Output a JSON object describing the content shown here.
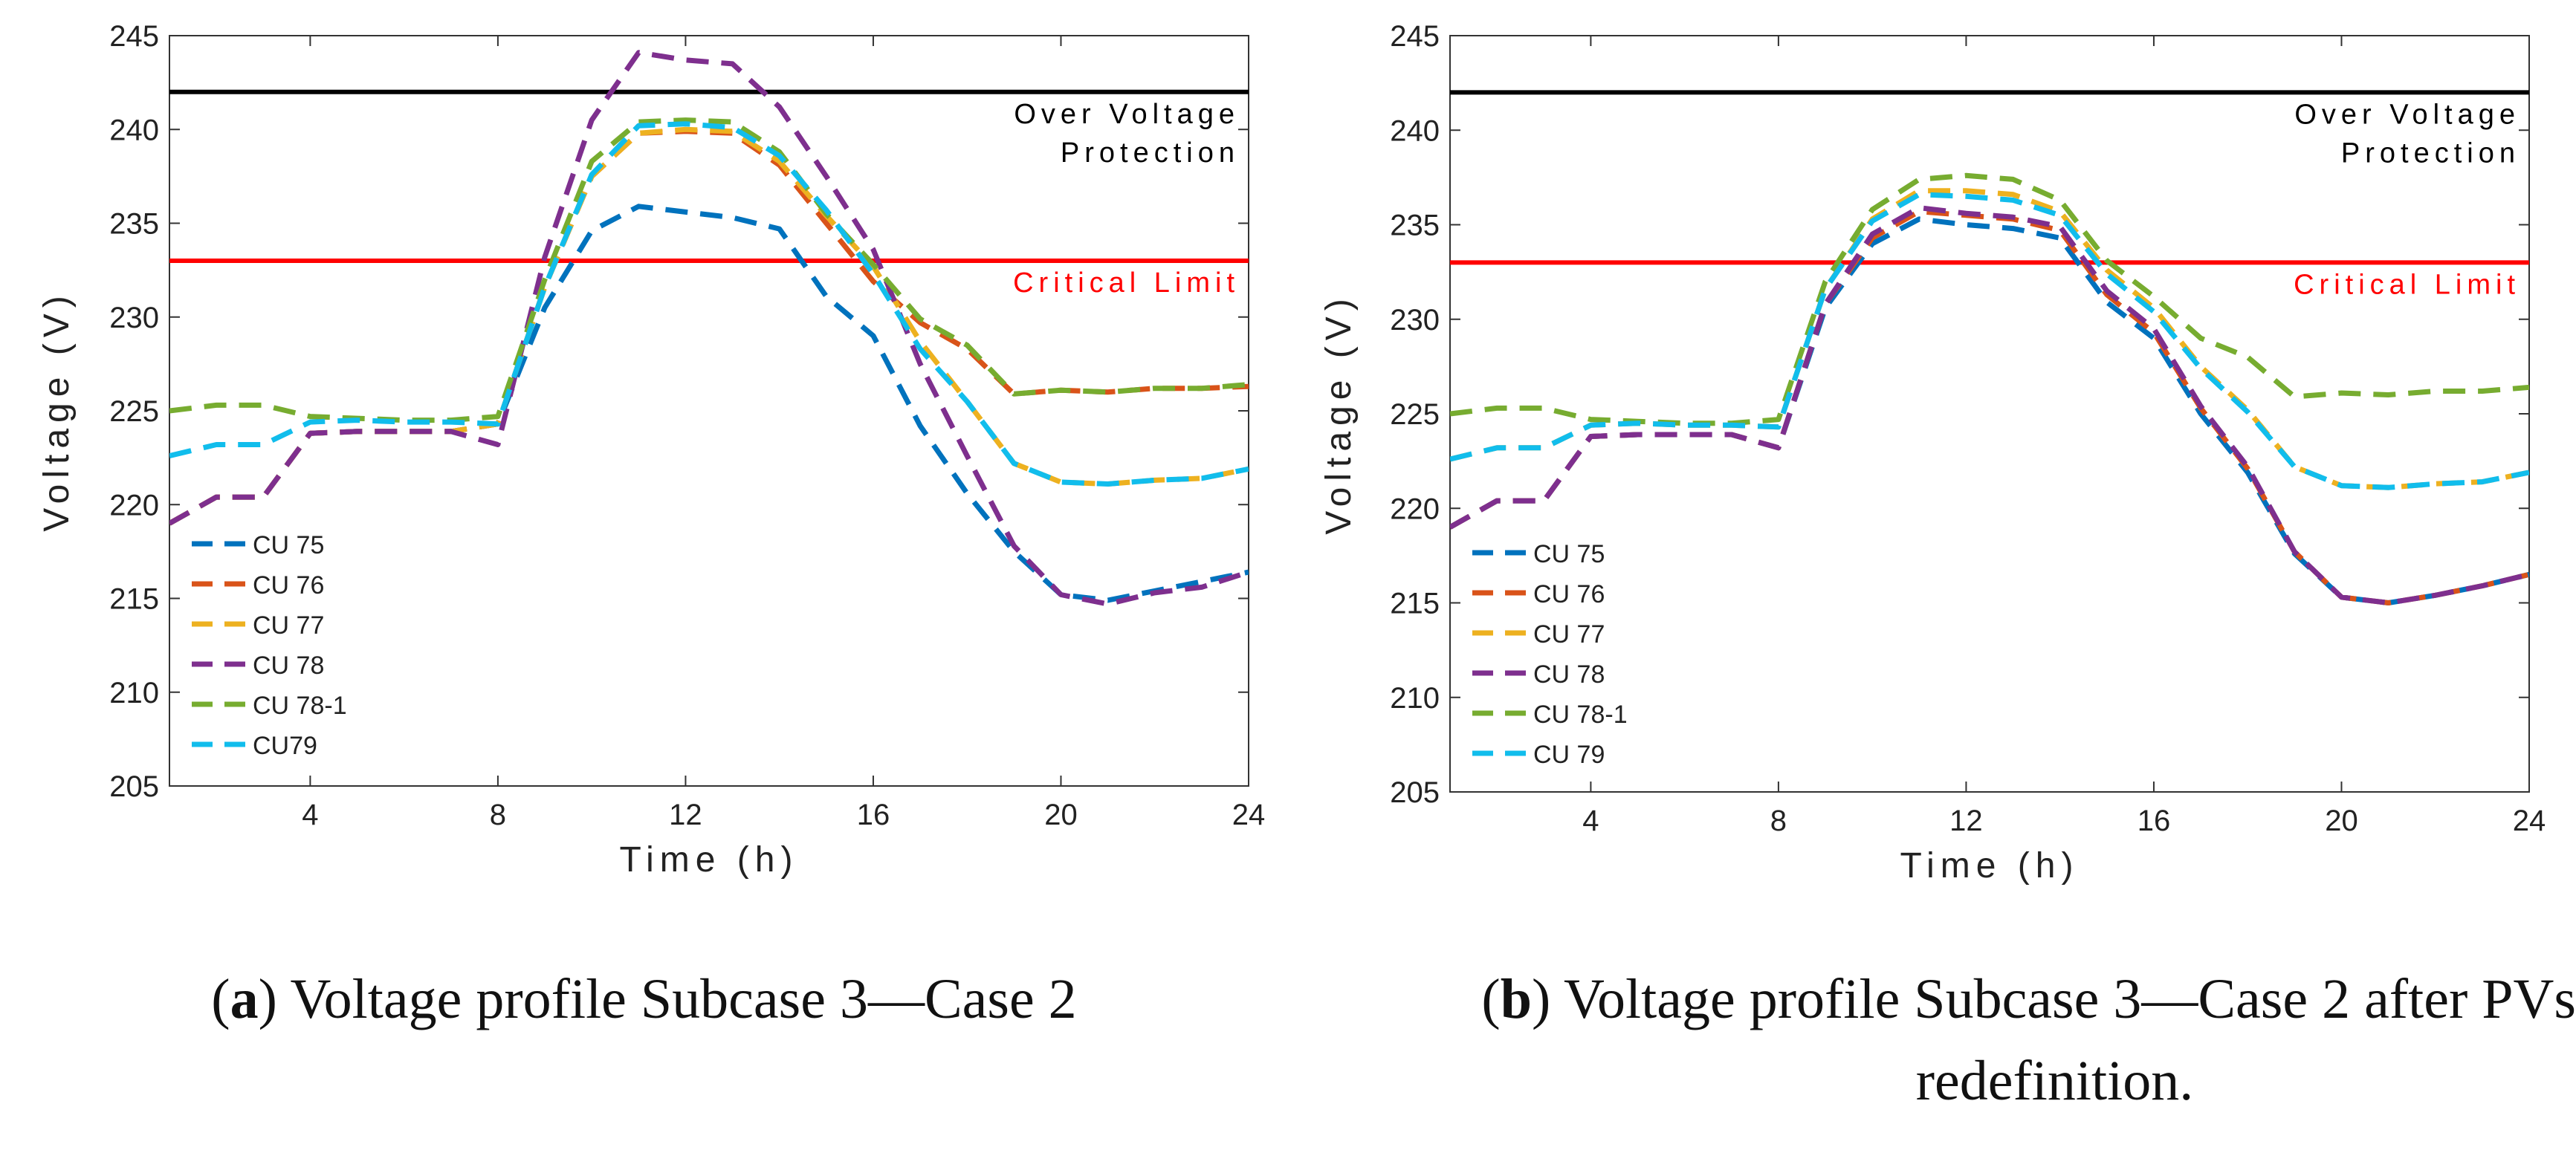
{
  "chart_data": [
    {
      "type": "line",
      "caption": {
        "letter": "a",
        "text": "Voltage profile Subcase 3—Case 2"
      },
      "xlabel": "Time (h)",
      "ylabel": "Voltage (V)",
      "xlim": [
        1,
        24
      ],
      "ylim": [
        205,
        245
      ],
      "xticks": [
        4,
        8,
        12,
        16,
        20,
        24
      ],
      "yticks": [
        205,
        210,
        215,
        220,
        225,
        230,
        235,
        240,
        245
      ],
      "grid": false,
      "legend_position": "bottom-left",
      "hlines": [
        {
          "y": 242,
          "color": "#000000",
          "label_lines": [
            "Over Voltage",
            "Protection"
          ]
        },
        {
          "y": 233,
          "color": "#ff0000",
          "label_lines": [
            "Critical Limit"
          ]
        }
      ],
      "x": [
        1,
        2,
        3,
        4,
        5,
        6,
        7,
        8,
        9,
        10,
        11,
        12,
        13,
        14,
        15,
        16,
        17,
        18,
        19,
        20,
        21,
        22,
        23,
        24
      ],
      "series": [
        {
          "name": "CU 75",
          "color": "#0072bd",
          "values": [
            219.0,
            220.4,
            220.4,
            223.8,
            223.9,
            223.9,
            223.9,
            224.3,
            230.5,
            234.6,
            235.9,
            235.6,
            235.3,
            234.7,
            231.1,
            229.0,
            224.2,
            220.6,
            217.5,
            215.2,
            214.9,
            215.4,
            215.9,
            216.4
          ]
        },
        {
          "name": "CU 76",
          "color": "#d95319",
          "values": [
            219.0,
            220.4,
            220.4,
            223.8,
            223.9,
            223.9,
            223.9,
            224.3,
            231.6,
            237.5,
            239.8,
            239.9,
            239.8,
            238.1,
            235.0,
            231.9,
            229.7,
            228.3,
            225.9,
            226.1,
            226.0,
            226.2,
            226.2,
            226.3
          ]
        },
        {
          "name": "CU 77",
          "color": "#edb120",
          "values": [
            219.0,
            220.4,
            220.4,
            223.8,
            223.9,
            223.9,
            223.9,
            224.3,
            231.6,
            237.5,
            239.8,
            240.0,
            239.9,
            238.3,
            235.4,
            232.7,
            228.7,
            225.5,
            222.2,
            221.2,
            221.1,
            221.3,
            221.4,
            221.9
          ]
        },
        {
          "name": "CU 78",
          "color": "#7e2f8e",
          "values": [
            219.0,
            220.4,
            220.4,
            223.8,
            223.9,
            223.9,
            223.9,
            223.2,
            233.2,
            240.5,
            244.1,
            243.7,
            243.5,
            241.2,
            237.5,
            233.6,
            227.5,
            222.6,
            217.8,
            215.2,
            214.7,
            215.3,
            215.6,
            216.4
          ]
        },
        {
          "name": "CU 78-1",
          "color": "#77ac30",
          "values": [
            225.0,
            225.3,
            225.3,
            224.7,
            224.6,
            224.5,
            224.5,
            224.7,
            232.0,
            238.3,
            240.4,
            240.5,
            240.4,
            238.8,
            235.5,
            232.8,
            229.9,
            228.5,
            225.9,
            226.1,
            226.0,
            226.2,
            226.2,
            226.4
          ]
        },
        {
          "name": "CU79",
          "color": "#11bdec",
          "values": [
            222.6,
            223.2,
            223.2,
            224.4,
            224.5,
            224.4,
            224.4,
            224.3,
            231.6,
            237.6,
            240.2,
            240.3,
            240.1,
            238.6,
            235.7,
            232.3,
            228.3,
            225.5,
            222.2,
            221.2,
            221.1,
            221.3,
            221.4,
            221.9
          ]
        }
      ]
    },
    {
      "type": "line",
      "caption": {
        "letter": "b",
        "text_line1": "Voltage profile Subcase 3—Case 2 after PVs",
        "text_line2": "redefinition."
      },
      "xlabel": "Time (h)",
      "ylabel": "Voltage (V)",
      "xlim": [
        1,
        24
      ],
      "ylim": [
        205,
        245
      ],
      "xticks": [
        4,
        8,
        12,
        16,
        20,
        24
      ],
      "yticks": [
        205,
        210,
        215,
        220,
        225,
        230,
        235,
        240,
        245
      ],
      "grid": false,
      "legend_position": "bottom-left",
      "hlines": [
        {
          "y": 242,
          "color": "#000000",
          "label_lines": [
            "Over Voltage",
            "Protection"
          ]
        },
        {
          "y": 233,
          "color": "#ff0000",
          "label_lines": [
            "Critical Limit"
          ]
        }
      ],
      "x": [
        1,
        2,
        3,
        4,
        5,
        6,
        7,
        8,
        9,
        10,
        11,
        12,
        13,
        14,
        15,
        16,
        17,
        18,
        19,
        20,
        21,
        22,
        23,
        24
      ],
      "series": [
        {
          "name": "CU 75",
          "color": "#0072bd",
          "values": [
            219.0,
            220.4,
            220.4,
            223.8,
            223.9,
            223.9,
            223.9,
            223.2,
            230.6,
            234.0,
            235.3,
            235.0,
            234.8,
            234.3,
            230.9,
            229.0,
            225.0,
            221.9,
            217.6,
            215.3,
            215.0,
            215.4,
            215.9,
            216.5
          ]
        },
        {
          "name": "CU 76",
          "color": "#d95319",
          "values": [
            219.0,
            220.4,
            220.4,
            223.8,
            223.9,
            223.9,
            223.9,
            223.2,
            230.8,
            234.3,
            235.7,
            235.5,
            235.3,
            234.7,
            231.3,
            229.3,
            225.3,
            222.1,
            217.7,
            215.3,
            215.0,
            215.4,
            215.9,
            216.5
          ]
        },
        {
          "name": "CU 77",
          "color": "#edb120",
          "values": [
            222.6,
            223.2,
            223.2,
            224.4,
            224.5,
            224.4,
            224.4,
            224.3,
            231.6,
            235.3,
            236.8,
            236.8,
            236.6,
            235.7,
            232.6,
            230.6,
            227.5,
            225.2,
            222.2,
            221.2,
            221.1,
            221.3,
            221.4,
            221.9
          ]
        },
        {
          "name": "CU 78",
          "color": "#7e2f8e",
          "values": [
            219.0,
            220.4,
            220.4,
            223.8,
            223.9,
            223.9,
            223.9,
            223.2,
            230.8,
            234.5,
            235.9,
            235.6,
            235.4,
            234.9,
            231.5,
            229.5,
            225.4,
            222.2,
            217.7,
            215.3,
            215.0,
            215.4,
            215.9,
            216.5
          ]
        },
        {
          "name": "CU 78-1",
          "color": "#77ac30",
          "values": [
            225.0,
            225.3,
            225.3,
            224.7,
            224.6,
            224.5,
            224.5,
            224.7,
            232.0,
            235.8,
            237.4,
            237.6,
            237.4,
            236.3,
            233.1,
            231.2,
            229.0,
            228.0,
            225.9,
            226.1,
            226.0,
            226.2,
            226.2,
            226.4
          ]
        },
        {
          "name": "CU 79",
          "color": "#11bdec",
          "values": [
            222.6,
            223.2,
            223.2,
            224.4,
            224.5,
            224.4,
            224.4,
            224.3,
            231.6,
            235.2,
            236.6,
            236.5,
            236.3,
            235.5,
            232.4,
            230.4,
            227.4,
            225.1,
            222.2,
            221.2,
            221.1,
            221.3,
            221.4,
            221.9
          ]
        }
      ]
    }
  ]
}
